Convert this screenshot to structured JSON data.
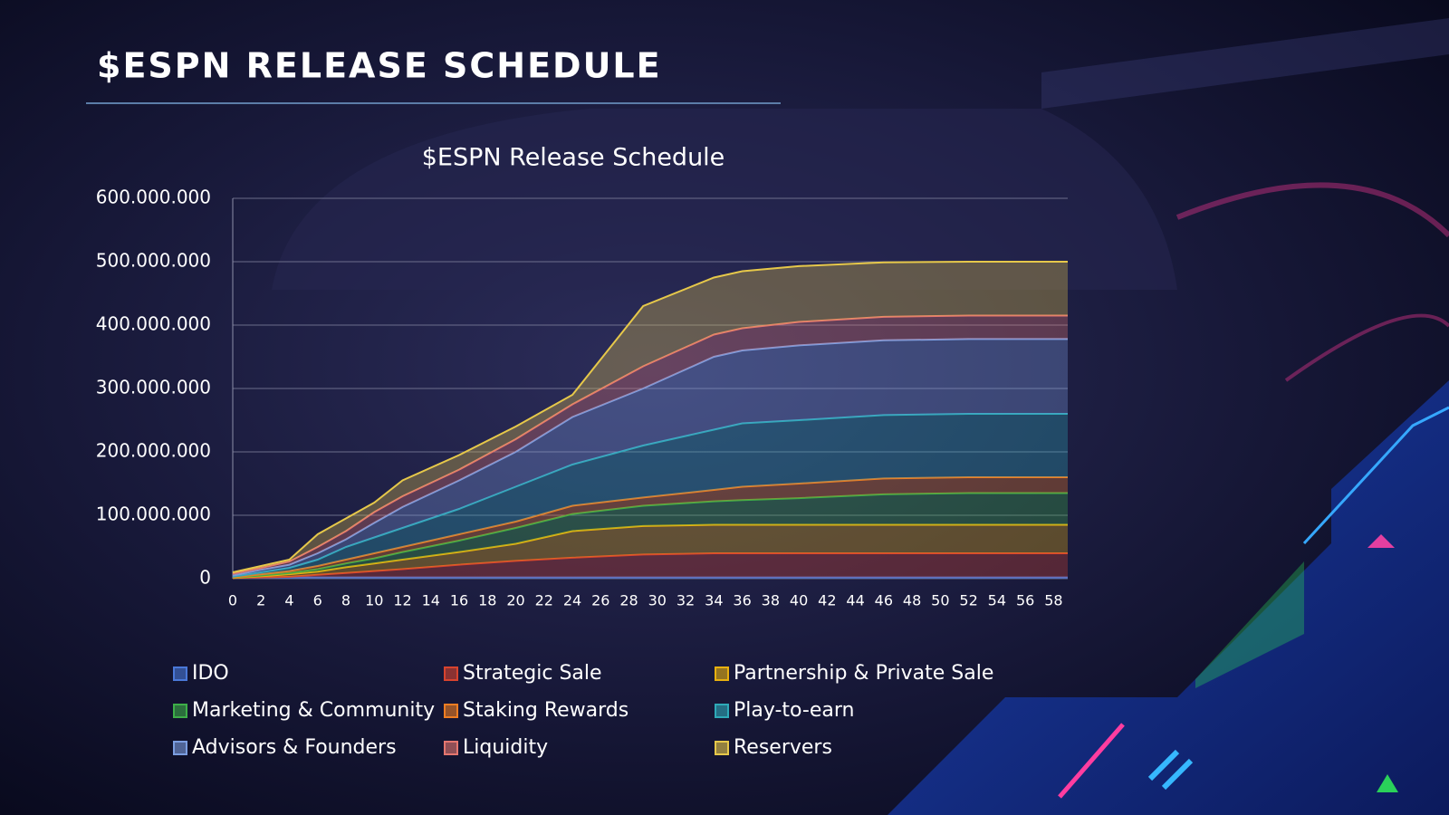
{
  "slide_title": "$ESPN RELEASE SCHEDULE",
  "chart_data": {
    "type": "stacked-area",
    "title": "$ESPN Release Schedule",
    "x": [
      0,
      2,
      4,
      6,
      8,
      10,
      12,
      16,
      20,
      24,
      29,
      34,
      36,
      40,
      46,
      52,
      59
    ],
    "xlim": [
      0,
      59
    ],
    "xticks": [
      0,
      2,
      4,
      6,
      8,
      10,
      12,
      14,
      16,
      18,
      20,
      22,
      24,
      26,
      28,
      30,
      32,
      34,
      36,
      38,
      40,
      42,
      44,
      46,
      48,
      50,
      52,
      54,
      56,
      58
    ],
    "ylim": [
      0,
      600000000
    ],
    "yticks": [
      0,
      {
        "value": 100000000,
        "label": "100.000.000"
      },
      {
        "value": 200000000,
        "label": "200.000.000"
      },
      {
        "value": 300000000,
        "label": "300.000.000"
      },
      {
        "value": 400000000,
        "label": "400.000.000"
      },
      {
        "value": 500000000,
        "label": "500.000.000"
      },
      {
        "value": 600000000,
        "label": "600.000.000"
      }
    ],
    "grid": true,
    "legend": "bottom",
    "series": [
      {
        "name": "IDO",
        "color": "#4a78d8",
        "values": [
          1000000,
          2000000,
          2000000,
          2000000,
          2000000,
          2000000,
          2000000,
          2000000,
          2000000,
          2000000,
          2000000,
          2000000,
          2000000,
          2000000,
          2000000,
          2000000,
          2000000
        ]
      },
      {
        "name": "Strategic Sale",
        "color": "#d8432e",
        "values": [
          0,
          0,
          1000000,
          4000000,
          7000000,
          10000000,
          13000000,
          20000000,
          26000000,
          31000000,
          36000000,
          38000000,
          38000000,
          38000000,
          38000000,
          38000000,
          38000000
        ]
      },
      {
        "name": "Partnership & Private Sale",
        "color": "#e8b00f",
        "values": [
          0,
          2000000,
          4000000,
          5000000,
          9000000,
          12000000,
          15000000,
          20000000,
          27000000,
          42000000,
          45000000,
          45000000,
          45000000,
          45000000,
          45000000,
          45000000,
          45000000
        ]
      },
      {
        "name": "Marketing & Community",
        "color": "#3dae48",
        "values": [
          1000000,
          1000000,
          2000000,
          4000000,
          6000000,
          8000000,
          12000000,
          18000000,
          25000000,
          27000000,
          32000000,
          37000000,
          39000000,
          42000000,
          48000000,
          50000000,
          50000000
        ]
      },
      {
        "name": "Staking Rewards",
        "color": "#ee7d22",
        "values": [
          0,
          2000000,
          3000000,
          5000000,
          6000000,
          8000000,
          8000000,
          10000000,
          10000000,
          13000000,
          13000000,
          18000000,
          21000000,
          23000000,
          25000000,
          25000000,
          25000000
        ]
      },
      {
        "name": "Play-to-earn",
        "color": "#2ea9b8",
        "values": [
          1000000,
          3000000,
          5000000,
          10000000,
          20000000,
          25000000,
          30000000,
          40000000,
          55000000,
          65000000,
          82000000,
          95000000,
          100000000,
          100000000,
          100000000,
          100000000,
          100000000
        ]
      },
      {
        "name": "Advisors & Founders",
        "color": "#7b9de0",
        "values": [
          2000000,
          4000000,
          5000000,
          10000000,
          12000000,
          23000000,
          33000000,
          45000000,
          55000000,
          75000000,
          90000000,
          115000000,
          115000000,
          118000000,
          118000000,
          118000000,
          118000000
        ]
      },
      {
        "name": "Liquidity",
        "color": "#e4766f",
        "values": [
          3000000,
          3000000,
          5000000,
          10000000,
          13000000,
          17000000,
          17000000,
          17000000,
          20000000,
          20000000,
          35000000,
          35000000,
          35000000,
          37000000,
          37000000,
          37000000,
          37000000
        ]
      },
      {
        "name": "Reservers",
        "color": "#e6c84a",
        "values": [
          2000000,
          3000000,
          3000000,
          20000000,
          20000000,
          15000000,
          25000000,
          23000000,
          20000000,
          15000000,
          95000000,
          90000000,
          90000000,
          88000000,
          86000000,
          85000000,
          85000000
        ]
      }
    ]
  }
}
